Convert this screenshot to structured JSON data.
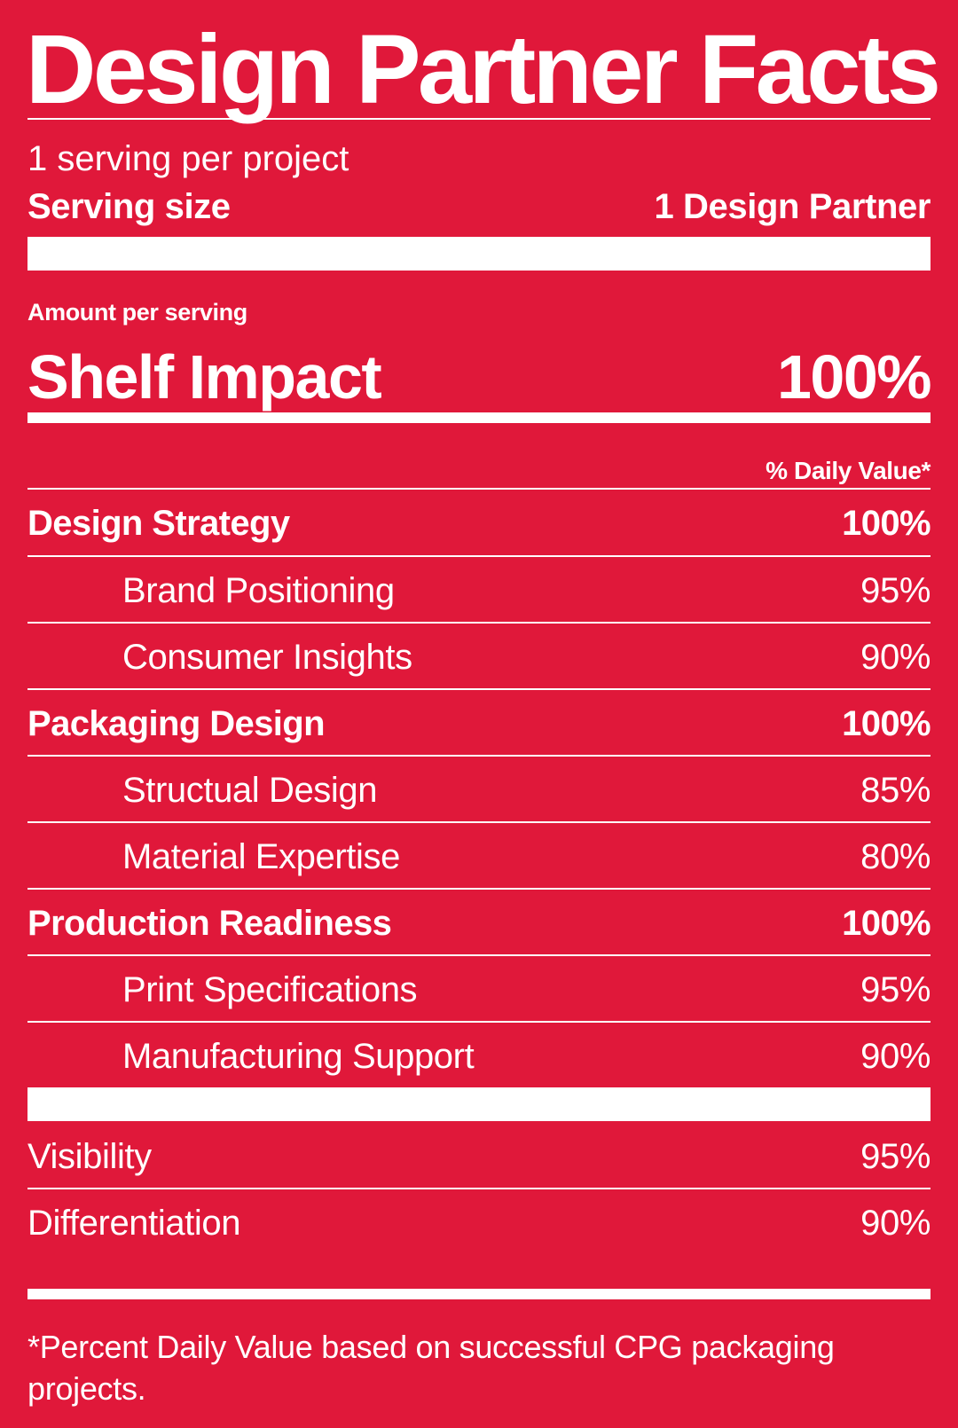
{
  "title": "Design Partner Facts",
  "servings_per_container": "1 serving per project",
  "serving_size": {
    "label": "Serving size",
    "value": "1 Design Partner"
  },
  "amount_per_serving": "Amount per serving",
  "headline": {
    "label": "Shelf Impact",
    "value": "100%"
  },
  "daily_value_header": "% Daily Value*",
  "nutrients": [
    {
      "name": "Design Strategy",
      "value": "100%",
      "level": "main"
    },
    {
      "name": "Brand Positioning",
      "value": "95%",
      "level": "sub"
    },
    {
      "name": "Consumer Insights",
      "value": "90%",
      "level": "sub"
    },
    {
      "name": "Packaging Design",
      "value": "100%",
      "level": "main"
    },
    {
      "name": "Structual Design",
      "value": "85%",
      "level": "sub"
    },
    {
      "name": "Material Expertise",
      "value": "80%",
      "level": "sub"
    },
    {
      "name": "Production Readiness",
      "value": "100%",
      "level": "main"
    },
    {
      "name": "Print Specifications",
      "value": "95%",
      "level": "sub"
    },
    {
      "name": "Manufacturing Support",
      "value": "90%",
      "level": "sub"
    }
  ],
  "extras": [
    {
      "name": "Visibility",
      "value": "95%"
    },
    {
      "name": "Differentiation",
      "value": "90%"
    }
  ],
  "footnote": "*Percent Daily Value based on successful CPG packaging projects.",
  "colors": {
    "background": "#e0183a",
    "foreground": "#ffffff"
  }
}
